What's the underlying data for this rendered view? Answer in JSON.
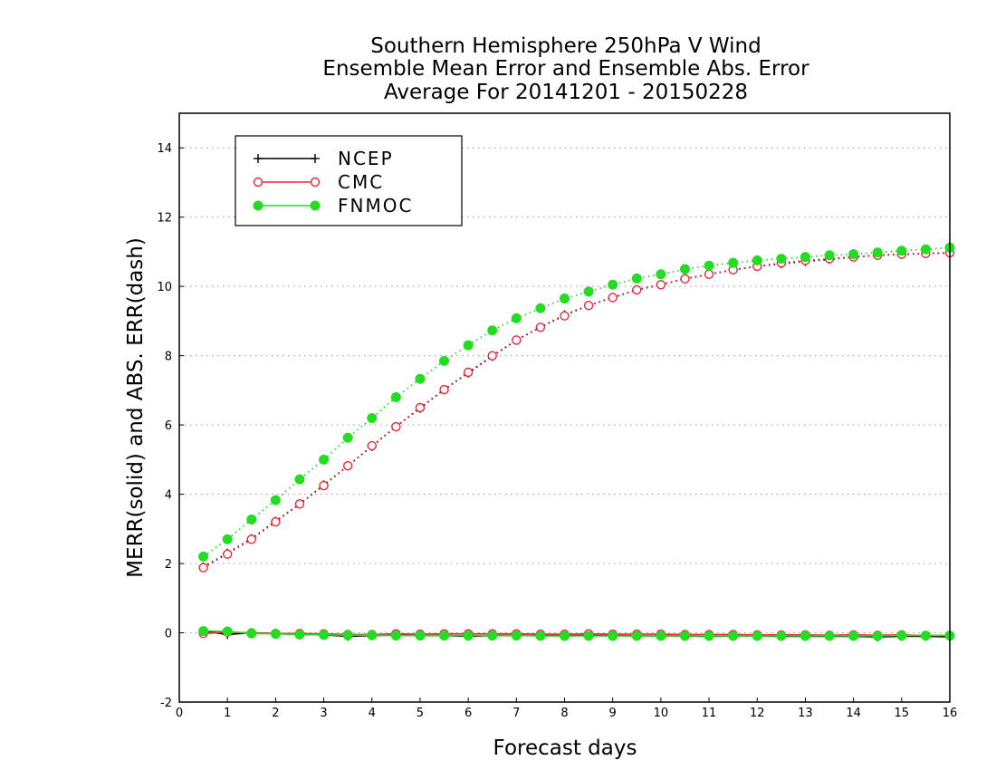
{
  "chart_data": {
    "type": "line",
    "title_lines": [
      "Southern Hemisphere 250hPa V Wind",
      "Ensemble Mean Error and Ensemble Abs. Error",
      "Average For 20141201 - 20150228"
    ],
    "xlabel": "Forecast days",
    "ylabel": "MERR(solid) and ABS. ERR(dash)",
    "xlim": [
      0,
      16
    ],
    "ylim": [
      -2,
      15
    ],
    "xticks": [
      "0",
      "1",
      "2",
      "3",
      "4",
      "5",
      "6",
      "7",
      "8",
      "9",
      "10",
      "11",
      "12",
      "13",
      "14",
      "15",
      "16"
    ],
    "yticks": [
      "-2",
      "0",
      "2",
      "4",
      "6",
      "8",
      "10",
      "12",
      "14"
    ],
    "grid": "horizontal dotted",
    "legend_placement": "top-left",
    "x": [
      0.5,
      1,
      1.5,
      2,
      2.5,
      3,
      3.5,
      4,
      4.5,
      5,
      5.5,
      6,
      6.5,
      7,
      7.5,
      8,
      8.5,
      9,
      9.5,
      10,
      10.5,
      11,
      11.5,
      12,
      12.5,
      13,
      13.5,
      14,
      14.5,
      15,
      15.5,
      16
    ],
    "series": [
      {
        "name": "NCEP",
        "color": "#000000",
        "marker": "plus",
        "merr": [
          0.05,
          -0.05,
          0.0,
          -0.02,
          -0.05,
          -0.06,
          -0.1,
          -0.08,
          -0.07,
          -0.08,
          -0.08,
          -0.1,
          -0.08,
          -0.08,
          -0.08,
          -0.08,
          -0.08,
          -0.08,
          -0.09,
          -0.09,
          -0.09,
          -0.1,
          -0.09,
          -0.09,
          -0.1,
          -0.1,
          -0.1,
          -0.1,
          -0.12,
          -0.1,
          -0.1,
          -0.12
        ],
        "abs_err": [
          1.9,
          2.3,
          2.72,
          3.22,
          3.72,
          4.27,
          4.82,
          5.38,
          5.95,
          6.48,
          7.02,
          7.5,
          7.98,
          8.45,
          8.82,
          9.18,
          9.45,
          9.68,
          9.9,
          10.05,
          10.22,
          10.35,
          10.48,
          10.58,
          10.65,
          10.72,
          10.78,
          10.85,
          10.9,
          10.93,
          10.95,
          10.97
        ]
      },
      {
        "name": "CMC",
        "color": "#e8283a",
        "marker": "open-circle",
        "merr": [
          -0.02,
          0.02,
          0.0,
          -0.02,
          -0.02,
          -0.03,
          -0.05,
          -0.05,
          -0.03,
          -0.04,
          -0.03,
          -0.03,
          -0.03,
          -0.03,
          -0.04,
          -0.04,
          -0.03,
          -0.04,
          -0.04,
          -0.04,
          -0.05,
          -0.05,
          -0.05,
          -0.06,
          -0.06,
          -0.06,
          -0.07,
          -0.06,
          -0.07,
          -0.06,
          -0.08,
          -0.08
        ],
        "abs_err": [
          1.88,
          2.27,
          2.7,
          3.2,
          3.72,
          4.25,
          4.82,
          5.4,
          5.95,
          6.5,
          7.02,
          7.52,
          8.0,
          8.45,
          8.82,
          9.15,
          9.45,
          9.68,
          9.9,
          10.05,
          10.22,
          10.35,
          10.48,
          10.58,
          10.68,
          10.75,
          10.8,
          10.85,
          10.9,
          10.93,
          10.95,
          10.97
        ]
      },
      {
        "name": "FNMOC",
        "color": "#22dd22",
        "marker": "filled-circle",
        "merr": [
          0.05,
          0.04,
          -0.02,
          -0.03,
          -0.05,
          -0.06,
          -0.07,
          -0.07,
          -0.08,
          -0.08,
          -0.08,
          -0.08,
          -0.08,
          -0.08,
          -0.09,
          -0.09,
          -0.09,
          -0.09,
          -0.09,
          -0.09,
          -0.09,
          -0.09,
          -0.09,
          -0.09,
          -0.09,
          -0.09,
          -0.09,
          -0.09,
          -0.09,
          -0.08,
          -0.08,
          -0.08
        ],
        "abs_err": [
          2.2,
          2.7,
          3.27,
          3.83,
          4.43,
          5.0,
          5.63,
          6.2,
          6.8,
          7.33,
          7.85,
          8.3,
          8.73,
          9.08,
          9.37,
          9.65,
          9.85,
          10.05,
          10.23,
          10.35,
          10.5,
          10.6,
          10.68,
          10.75,
          10.8,
          10.85,
          10.9,
          10.93,
          10.98,
          11.03,
          11.07,
          11.12
        ]
      }
    ]
  }
}
